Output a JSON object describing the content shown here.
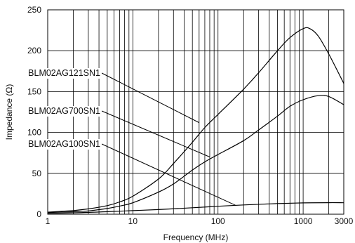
{
  "chart_data": {
    "type": "line",
    "xlabel": "Frequency (MHz)",
    "ylabel": "Impedance (Ω)",
    "x_scale": "log",
    "xlim": [
      1,
      3000
    ],
    "ylim": [
      0,
      250
    ],
    "x_ticks": [
      {
        "value": 1,
        "label": "1"
      },
      {
        "value": 10,
        "label": "10"
      },
      {
        "value": 100,
        "label": "100"
      },
      {
        "value": 1000,
        "label": "1000"
      },
      {
        "value": 3000,
        "label": "3000"
      }
    ],
    "y_ticks": [
      {
        "value": 0,
        "label": "0"
      },
      {
        "value": 50,
        "label": "50"
      },
      {
        "value": 100,
        "label": "100"
      },
      {
        "value": 150,
        "label": "150"
      },
      {
        "value": 200,
        "label": "200"
      },
      {
        "value": 250,
        "label": "250"
      }
    ],
    "grid": true,
    "series": [
      {
        "name": "BLM02AG121SN1",
        "label_point": [
          60,
          112
        ],
        "x": [
          1,
          2,
          3,
          5,
          7,
          10,
          20,
          30,
          50,
          70,
          100,
          200,
          300,
          500,
          700,
          1000,
          1200,
          1500,
          2000,
          3000
        ],
        "y": [
          2.5,
          4.5,
          6.5,
          10.5,
          15,
          22,
          43,
          62,
          88,
          106,
          122,
          153,
          173,
          200,
          216,
          227,
          227,
          218,
          196,
          160
        ]
      },
      {
        "name": "BLM02AG700SN1",
        "label_point": [
          80,
          70
        ],
        "x": [
          1,
          2,
          3,
          5,
          7,
          10,
          20,
          30,
          50,
          70,
          100,
          200,
          300,
          500,
          700,
          1000,
          1500,
          2000,
          3000
        ],
        "y": [
          2,
          3,
          4,
          7,
          10,
          14,
          27,
          37,
          54,
          64,
          73,
          90,
          103,
          120,
          132,
          140,
          145,
          144,
          134
        ]
      },
      {
        "name": "BLM02AG100SN1",
        "label_point": [
          160,
          11
        ],
        "x": [
          1,
          2,
          3,
          5,
          10,
          20,
          50,
          100,
          200,
          500,
          1000,
          2000,
          3000
        ],
        "y": [
          1,
          1.7,
          2.2,
          3.1,
          4.4,
          5.7,
          7.9,
          9.7,
          11.3,
          13,
          13.8,
          14.1,
          14
        ]
      }
    ]
  }
}
